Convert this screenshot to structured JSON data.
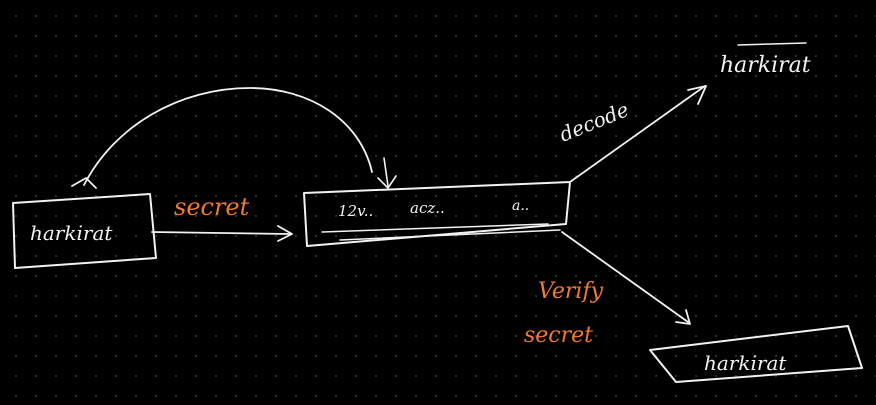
{
  "colors": {
    "background": "#000000",
    "grid_dot": "#3a3a3a",
    "ink_white": "#f2f2f2",
    "ink_orange": "#f07a2e"
  },
  "diagram": {
    "source_box": {
      "label": "harkirat"
    },
    "secret_label": "secret",
    "token_box": {
      "part1": "12v..",
      "part2": "acz..",
      "part3": "a.."
    },
    "decode_label": "decode",
    "decoded_output": "harkirat",
    "verify_label_line1": "Verify",
    "verify_label_line2": "secret",
    "verified_output": "harkirat"
  }
}
